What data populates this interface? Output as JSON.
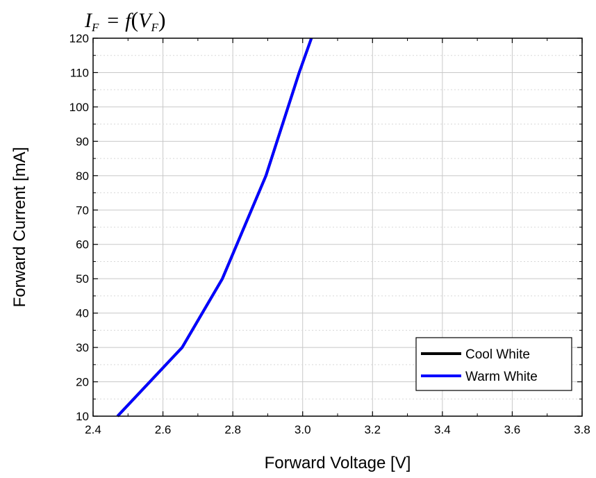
{
  "chart_data": {
    "type": "line",
    "title_formula": {
      "lhs": "I",
      "lhs_sub": "F",
      "eq": "= f",
      "open": "(",
      "var": "V",
      "var_sub": "F",
      "close": ")"
    },
    "xlabel": "Forward Voltage [V]",
    "ylabel": "Forward Current [mA]",
    "xlim": [
      2.4,
      3.8
    ],
    "ylim": [
      10,
      120
    ],
    "x_ticks": [
      2.4,
      2.6,
      2.8,
      3.0,
      3.2,
      3.4,
      3.6,
      3.8
    ],
    "x_tick_labels": [
      "2.4",
      "2.6",
      "2.8",
      "3.0",
      "3.2",
      "3.4",
      "3.6",
      "3.8"
    ],
    "y_ticks": [
      10,
      20,
      30,
      40,
      50,
      60,
      70,
      80,
      90,
      100,
      110,
      120
    ],
    "y_tick_labels": [
      "10",
      "20",
      "30",
      "40",
      "50",
      "60",
      "70",
      "80",
      "90",
      "100",
      "110",
      "120"
    ],
    "grid": true,
    "legend_position": "bottom-right",
    "series": [
      {
        "name": "Cool White",
        "color": "#000000",
        "points": [
          [
            2.47,
            10
          ],
          [
            2.655,
            30
          ],
          [
            2.77,
            50
          ],
          [
            2.895,
            80
          ],
          [
            2.99,
            110
          ],
          [
            3.025,
            120
          ]
        ]
      },
      {
        "name": "Warm White",
        "color": "#0000ff",
        "points": [
          [
            2.47,
            10
          ],
          [
            2.655,
            30
          ],
          [
            2.77,
            50
          ],
          [
            2.895,
            80
          ],
          [
            2.99,
            110
          ],
          [
            3.025,
            120
          ]
        ]
      }
    ]
  }
}
